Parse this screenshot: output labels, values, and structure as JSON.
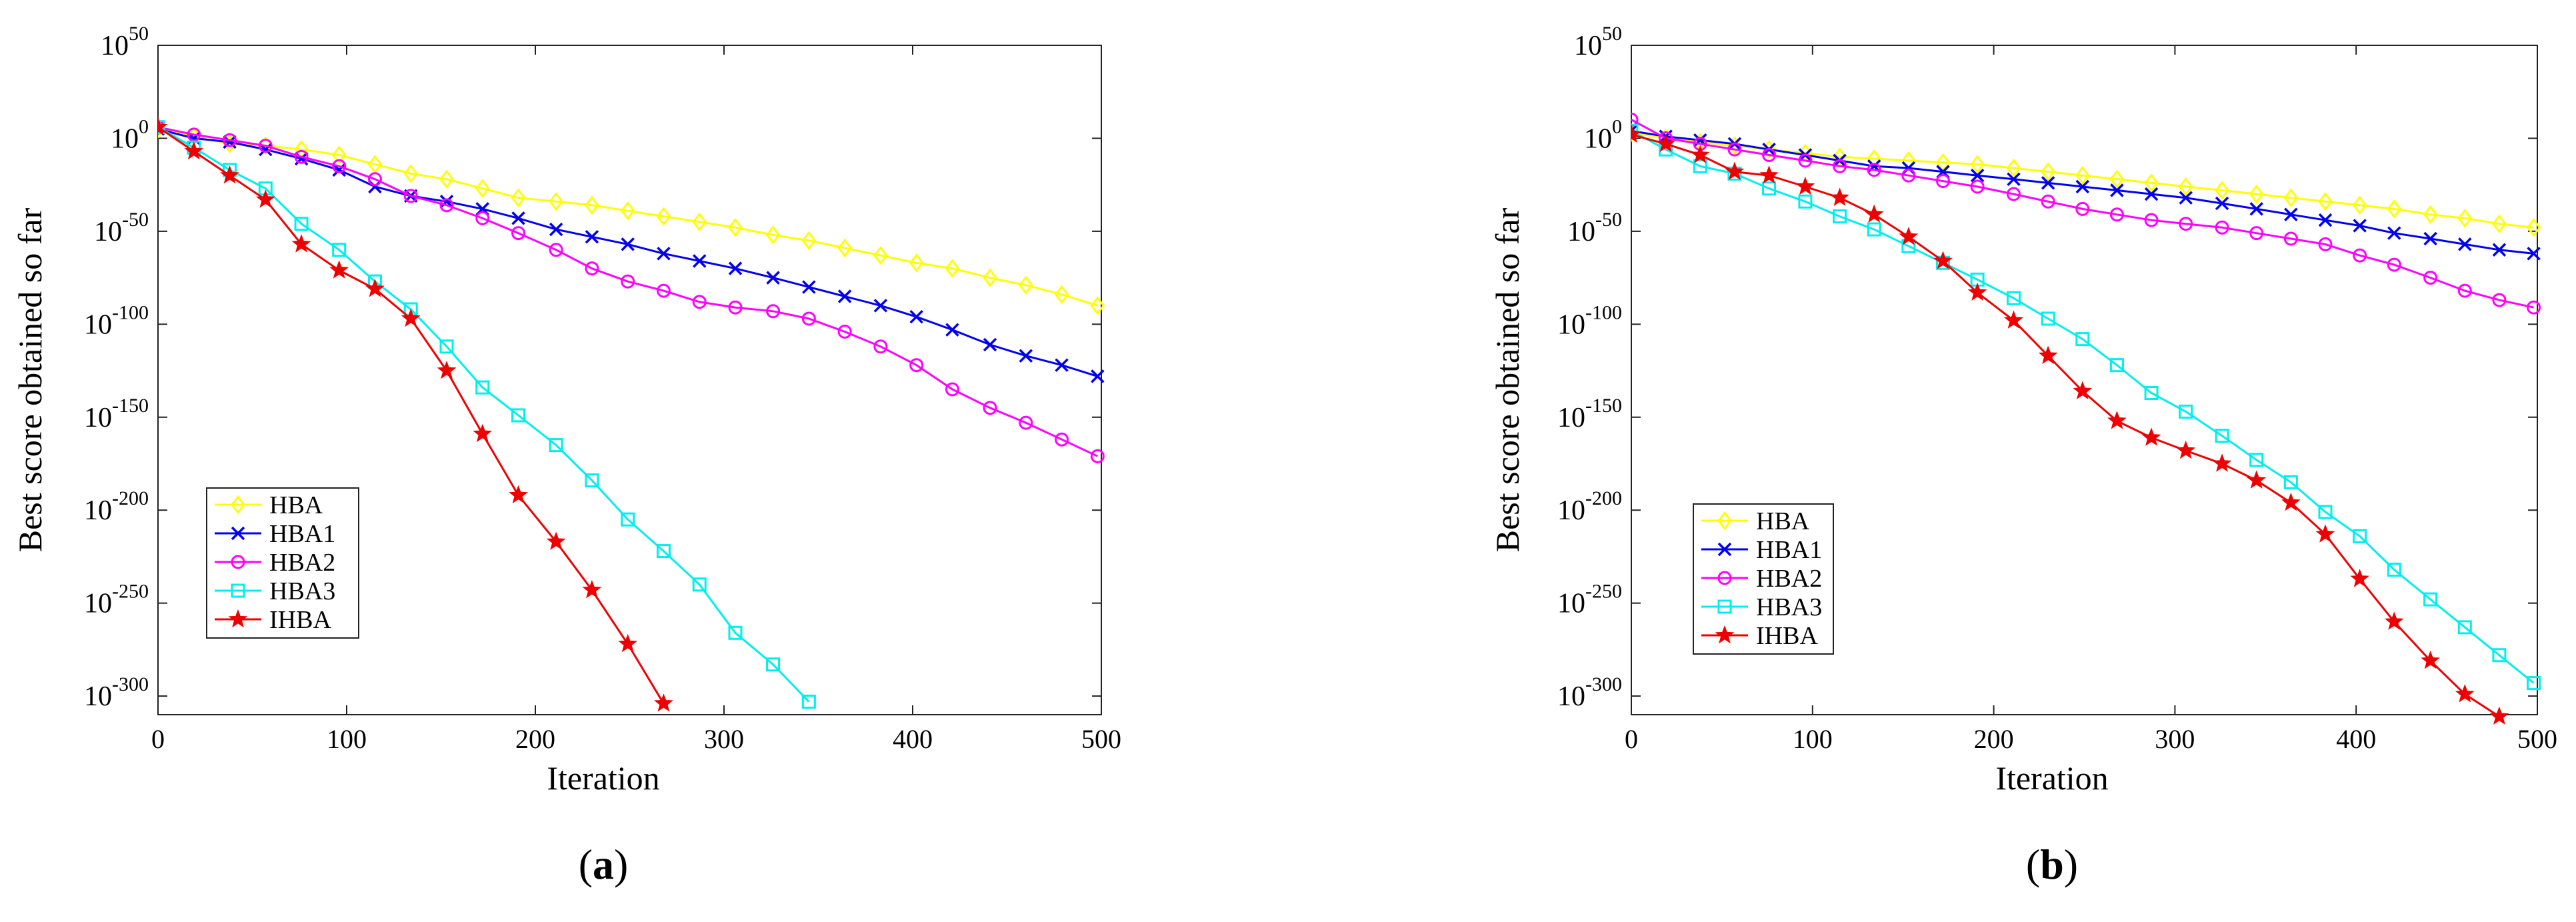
{
  "chart_data": [
    {
      "type": "line",
      "panel_label": "a",
      "xlabel": "Iteration",
      "ylabel": "Best score obtained so far",
      "xlim": [
        0,
        500
      ],
      "ylim_log10": [
        -310,
        50
      ],
      "yscale": "log",
      "xticks": [
        0,
        100,
        200,
        300,
        400,
        500
      ],
      "yticks": [
        {
          "base": "10",
          "exp": "50"
        },
        {
          "base": "10",
          "exp": "0"
        },
        {
          "base": "10",
          "exp": "-50"
        },
        {
          "base": "10",
          "exp": "-100"
        },
        {
          "base": "10",
          "exp": "-150"
        },
        {
          "base": "10",
          "exp": "-200"
        },
        {
          "base": "10",
          "exp": "-250"
        },
        {
          "base": "10",
          "exp": "-300"
        }
      ],
      "legend_position": "bottom-left",
      "series": [
        {
          "name": "HBA",
          "color": "#ffff00",
          "marker": "diamond",
          "x": [
            0,
            19,
            38,
            57,
            76,
            96,
            115,
            134,
            153,
            172,
            191,
            211,
            230,
            249,
            268,
            287,
            306,
            326,
            345,
            364,
            383,
            402,
            421,
            441,
            460,
            479,
            498
          ],
          "log10_y": [
            5,
            1,
            -3,
            -4,
            -6,
            -9,
            -14,
            -19,
            -22,
            -27,
            -32,
            -34,
            -36,
            -39,
            -42,
            -45,
            -48,
            -52,
            -55,
            -59,
            -63,
            -67,
            -70,
            -75,
            -79,
            -84,
            -90
          ]
        },
        {
          "name": "HBA1",
          "color": "#0000ee",
          "marker": "x",
          "x": [
            0,
            19,
            38,
            57,
            76,
            96,
            115,
            134,
            153,
            172,
            191,
            211,
            230,
            249,
            268,
            287,
            306,
            326,
            345,
            364,
            383,
            402,
            421,
            441,
            460,
            479,
            498
          ],
          "log10_y": [
            5,
            0,
            -2,
            -6,
            -11,
            -17,
            -26,
            -31,
            -34,
            -38,
            -43,
            -49,
            -53,
            -57,
            -62,
            -66,
            -70,
            -75,
            -80,
            -85,
            -90,
            -96,
            -103,
            -111,
            -117,
            -122,
            -128
          ]
        },
        {
          "name": "HBA2",
          "color": "#ff00ff",
          "marker": "circle",
          "x": [
            0,
            19,
            38,
            57,
            76,
            96,
            115,
            134,
            153,
            172,
            191,
            211,
            230,
            249,
            268,
            287,
            306,
            326,
            345,
            364,
            383,
            402,
            421,
            441,
            460,
            479,
            498
          ],
          "log10_y": [
            6,
            2,
            -1,
            -4,
            -10,
            -15,
            -22,
            -31,
            -36,
            -43,
            -51,
            -60,
            -70,
            -77,
            -82,
            -88,
            -91,
            -93,
            -97,
            -104,
            -112,
            -122,
            -135,
            -145,
            -153,
            -162,
            -171
          ]
        },
        {
          "name": "HBA3",
          "color": "#00eeee",
          "marker": "square",
          "x": [
            0,
            19,
            38,
            57,
            76,
            96,
            115,
            134,
            153,
            172,
            191,
            211,
            230,
            249,
            268,
            287,
            306,
            326,
            345
          ],
          "log10_y": [
            6,
            -5,
            -17,
            -27,
            -46,
            -60,
            -77,
            -92,
            -112,
            -134,
            -149,
            -165,
            -184,
            -205,
            -222,
            -240,
            -266,
            -283,
            -303
          ]
        },
        {
          "name": "IHBA",
          "color": "#ee0000",
          "marker": "star",
          "x": [
            0,
            19,
            38,
            57,
            76,
            96,
            115,
            134,
            153,
            172,
            191,
            211,
            230,
            249,
            268
          ],
          "log10_y": [
            6,
            -7,
            -20,
            -33,
            -57,
            -71,
            -81,
            -97,
            -125,
            -159,
            -192,
            -217,
            -243,
            -272,
            -304
          ]
        }
      ]
    },
    {
      "type": "line",
      "panel_label": "b",
      "xlabel": "Iteration",
      "ylabel": "Best score obtained so far",
      "xlim": [
        0,
        500
      ],
      "ylim_log10": [
        -310,
        50
      ],
      "yscale": "log",
      "xticks": [
        0,
        100,
        200,
        300,
        400,
        500
      ],
      "yticks": [
        {
          "base": "10",
          "exp": "50"
        },
        {
          "base": "10",
          "exp": "0"
        },
        {
          "base": "10",
          "exp": "-50"
        },
        {
          "base": "10",
          "exp": "-100"
        },
        {
          "base": "10",
          "exp": "-150"
        },
        {
          "base": "10",
          "exp": "-200"
        },
        {
          "base": "10",
          "exp": "-250"
        },
        {
          "base": "10",
          "exp": "-300"
        }
      ],
      "legend_position": "bottom-left",
      "series": [
        {
          "name": "HBA",
          "color": "#ffff00",
          "marker": "diamond",
          "x": [
            0,
            19,
            38,
            57,
            76,
            96,
            115,
            134,
            153,
            172,
            191,
            211,
            230,
            249,
            268,
            287,
            306,
            326,
            345,
            364,
            383,
            402,
            421,
            441,
            460,
            479,
            498
          ],
          "log10_y": [
            3,
            0,
            -2,
            -4,
            -6,
            -8,
            -10,
            -11,
            -12,
            -13,
            -14,
            -16,
            -18,
            -20,
            -22,
            -24,
            -26,
            -28,
            -30,
            -32,
            -34,
            -36,
            -38,
            -41,
            -43,
            -46,
            -48
          ]
        },
        {
          "name": "HBA1",
          "color": "#0000ee",
          "marker": "x",
          "x": [
            0,
            19,
            38,
            57,
            76,
            96,
            115,
            134,
            153,
            172,
            191,
            211,
            230,
            249,
            268,
            287,
            306,
            326,
            345,
            364,
            383,
            402,
            421,
            441,
            460,
            479,
            498
          ],
          "log10_y": [
            4,
            1,
            -1,
            -3,
            -6,
            -9,
            -12,
            -15,
            -16,
            -18,
            -20,
            -22,
            -24,
            -26,
            -28,
            -30,
            -32,
            -35,
            -38,
            -41,
            -44,
            -47,
            -51,
            -54,
            -57,
            -60,
            -62
          ]
        },
        {
          "name": "HBA2",
          "color": "#ff00ff",
          "marker": "circle",
          "x": [
            0,
            19,
            38,
            57,
            76,
            96,
            115,
            134,
            153,
            172,
            191,
            211,
            230,
            249,
            268,
            287,
            306,
            326,
            345,
            364,
            383,
            402,
            421,
            441,
            460,
            479,
            498
          ],
          "log10_y": [
            10,
            0,
            -3,
            -6,
            -9,
            -12,
            -15,
            -17,
            -20,
            -23,
            -26,
            -30,
            -34,
            -38,
            -41,
            -44,
            -46,
            -48,
            -51,
            -54,
            -57,
            -63,
            -68,
            -75,
            -82,
            -87,
            -91
          ]
        },
        {
          "name": "HBA3",
          "color": "#00eeee",
          "marker": "square",
          "x": [
            0,
            19,
            38,
            57,
            76,
            96,
            115,
            134,
            153,
            172,
            191,
            211,
            230,
            249,
            268,
            287,
            306,
            326,
            345,
            364,
            383,
            402,
            421,
            441,
            460,
            479,
            498
          ],
          "log10_y": [
            4,
            -6,
            -15,
            -19,
            -27,
            -34,
            -42,
            -49,
            -58,
            -67,
            -76,
            -86,
            -97,
            -108,
            -122,
            -137,
            -147,
            -160,
            -173,
            -185,
            -201,
            -214,
            -232,
            -248,
            -263,
            -278,
            -293
          ]
        },
        {
          "name": "IHBA",
          "color": "#ee0000",
          "marker": "star",
          "x": [
            0,
            19,
            38,
            57,
            76,
            96,
            115,
            134,
            153,
            172,
            191,
            211,
            230,
            249,
            268,
            287,
            306,
            326,
            345,
            364,
            383,
            402,
            421,
            441,
            460,
            479
          ],
          "log10_y": [
            2,
            -3,
            -9,
            -18,
            -20,
            -26,
            -32,
            -41,
            -53,
            -66,
            -83,
            -98,
            -117,
            -136,
            -152,
            -161,
            -168,
            -175,
            -184,
            -196,
            -213,
            -237,
            -260,
            -281,
            -299,
            -311
          ]
        }
      ]
    }
  ]
}
